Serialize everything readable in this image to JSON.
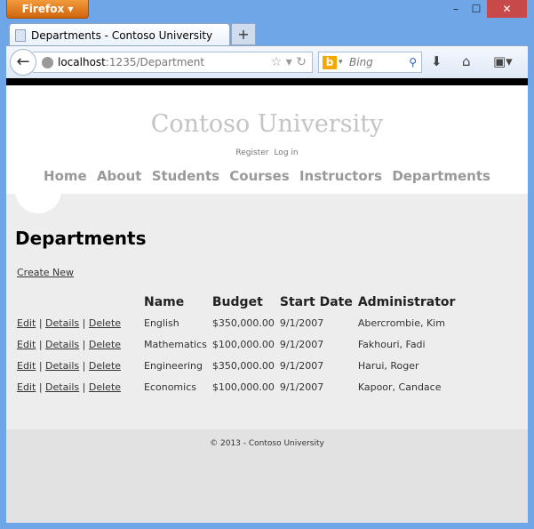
{
  "browser": {
    "menu_label": "Firefox ▾",
    "tab_title": "Departments - Contoso University",
    "new_tab": "+",
    "url_host": "localhost",
    "url_rest": ":1235/Department",
    "search_placeholder": "Bing",
    "minimize": "–",
    "maximize": "☐",
    "close": "✕"
  },
  "header": {
    "title": "Contoso University",
    "register": "Register",
    "login": "Log in",
    "nav": [
      "Home",
      "About",
      "Students",
      "Courses",
      "Instructors",
      "Departments"
    ]
  },
  "main": {
    "heading": "Departments",
    "create_new": "Create New",
    "columns": [
      "Name",
      "Budget",
      "Start Date",
      "Administrator"
    ],
    "actions": {
      "edit": "Edit",
      "details": "Details",
      "delete": "Delete",
      "sep": "|"
    },
    "rows": [
      {
        "name": "English",
        "budget": "$350,000.00",
        "start": "9/1/2007",
        "admin": "Abercrombie, Kim"
      },
      {
        "name": "Mathematics",
        "budget": "$100,000.00",
        "start": "9/1/2007",
        "admin": "Fakhouri, Fadi"
      },
      {
        "name": "Engineering",
        "budget": "$350,000.00",
        "start": "9/1/2007",
        "admin": "Harui, Roger"
      },
      {
        "name": "Economics",
        "budget": "$100,000.00",
        "start": "9/1/2007",
        "admin": "Kapoor, Candace"
      }
    ]
  },
  "footer": {
    "text": "© 2013 - Contoso University"
  }
}
